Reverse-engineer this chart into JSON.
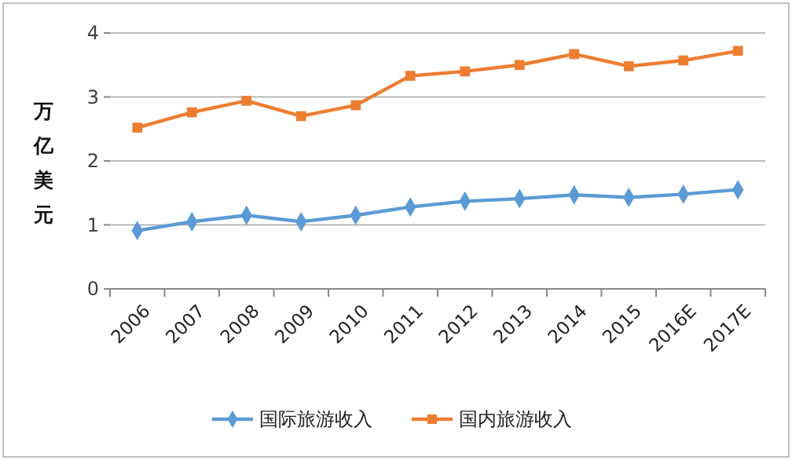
{
  "chart_data": {
    "type": "line",
    "ylabel": "万亿美元",
    "categories": [
      "2006",
      "2007",
      "2008",
      "2009",
      "2010",
      "2011",
      "2012",
      "2013",
      "2014",
      "2015",
      "2016E",
      "2017E"
    ],
    "series": [
      {
        "name": "国际旅游收入",
        "color": "#5b9bd5",
        "marker": "diamond",
        "values": [
          0.91,
          1.05,
          1.15,
          1.05,
          1.15,
          1.28,
          1.37,
          1.41,
          1.47,
          1.43,
          1.48,
          1.55
        ]
      },
      {
        "name": "国内旅游收入",
        "color": "#ed7d31",
        "marker": "square",
        "values": [
          2.52,
          2.76,
          2.94,
          2.7,
          2.87,
          3.33,
          3.4,
          3.5,
          3.67,
          3.48,
          3.57,
          3.72
        ]
      }
    ],
    "ylim": [
      0,
      4
    ],
    "yticks": [
      0,
      1,
      2,
      3,
      4
    ],
    "grid": "y",
    "legend": "bottom"
  }
}
